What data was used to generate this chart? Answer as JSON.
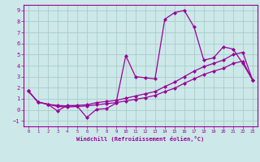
{
  "title": "",
  "xlabel": "Windchill (Refroidissement éolien,°C)",
  "ylabel": "",
  "bg_color": "#cce8e8",
  "grid_color": "#aacccc",
  "line_color": "#990099",
  "marker": "D",
  "markersize": 2,
  "linewidth": 0.9,
  "xlim": [
    -0.5,
    23.5
  ],
  "ylim": [
    -1.5,
    9.5
  ],
  "xticks": [
    0,
    1,
    2,
    3,
    4,
    5,
    6,
    7,
    8,
    9,
    10,
    11,
    12,
    13,
    14,
    15,
    16,
    17,
    18,
    19,
    20,
    21,
    22,
    23
  ],
  "yticks": [
    -1,
    0,
    1,
    2,
    3,
    4,
    5,
    6,
    7,
    8,
    9
  ],
  "line1_x": [
    0,
    1,
    2,
    3,
    4,
    5,
    6,
    7,
    8,
    9,
    10,
    11,
    12,
    13,
    14,
    15,
    16,
    17,
    18,
    19,
    20,
    21,
    22,
    23
  ],
  "line1_y": [
    1.7,
    0.7,
    0.5,
    -0.1,
    0.4,
    0.35,
    -0.7,
    0.05,
    0.1,
    0.6,
    4.9,
    3.0,
    2.9,
    2.8,
    8.2,
    8.8,
    9.0,
    7.5,
    4.5,
    4.7,
    5.7,
    5.5,
    4.2,
    2.7
  ],
  "line2_x": [
    0,
    1,
    2,
    3,
    4,
    5,
    6,
    7,
    8,
    9,
    10,
    11,
    12,
    13,
    14,
    15,
    16,
    17,
    18,
    19,
    20,
    21,
    22,
    23
  ],
  "line2_y": [
    1.7,
    0.7,
    0.5,
    0.4,
    0.35,
    0.4,
    0.45,
    0.65,
    0.75,
    0.85,
    1.05,
    1.25,
    1.45,
    1.65,
    2.1,
    2.5,
    3.0,
    3.5,
    3.9,
    4.2,
    4.5,
    5.0,
    5.2,
    2.7
  ],
  "line3_x": [
    0,
    1,
    2,
    3,
    4,
    5,
    6,
    7,
    8,
    9,
    10,
    11,
    12,
    13,
    14,
    15,
    16,
    17,
    18,
    19,
    20,
    21,
    22,
    23
  ],
  "line3_y": [
    1.7,
    0.7,
    0.5,
    0.3,
    0.25,
    0.3,
    0.35,
    0.45,
    0.55,
    0.65,
    0.8,
    0.95,
    1.1,
    1.3,
    1.65,
    1.95,
    2.4,
    2.8,
    3.2,
    3.5,
    3.75,
    4.2,
    4.4,
    2.7
  ]
}
